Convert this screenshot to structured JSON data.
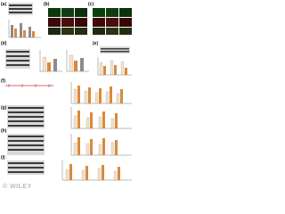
{
  "panels": [
    {
      "label": "(a)"
    },
    {
      "label": "(b)"
    },
    {
      "label": "(c)"
    },
    {
      "label": "(d)"
    },
    {
      "label": "(e)"
    },
    {
      "label": "(f)"
    },
    {
      "label": "(g)"
    },
    {
      "label": "(h)"
    },
    {
      "label": "(i)"
    }
  ],
  "watermark": "© WILEY"
}
